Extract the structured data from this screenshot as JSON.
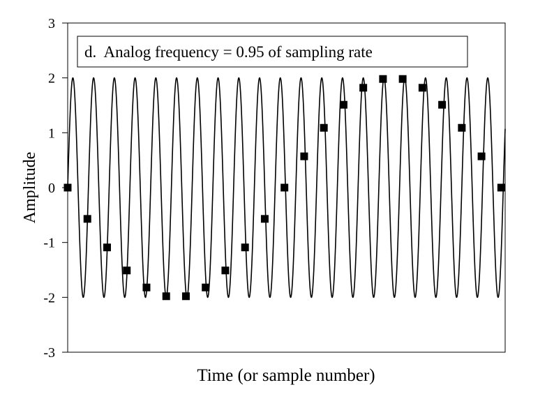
{
  "chart_data": {
    "type": "line",
    "title": "d.  Analog frequency = 0.95 of sampling rate",
    "xlabel": "Time (or sample number)",
    "ylabel": "Amplitude",
    "ylim": [
      -3,
      3
    ],
    "xlim": [
      0,
      22.2
    ],
    "yticks": [
      "3",
      "2",
      "1",
      "0",
      "-1",
      "-2",
      "-3"
    ],
    "grid": false,
    "legend": "none",
    "series": [
      {
        "kind": "continuous",
        "amplitude": 2,
        "cycles_per_sample": 0.95,
        "color": "#000000"
      },
      {
        "kind": "samples",
        "marker": "square",
        "color": "#000000",
        "x": [
          0,
          1,
          2,
          3,
          4,
          5,
          6,
          7,
          8,
          9,
          10,
          11,
          12,
          13,
          14,
          15,
          16,
          17,
          18,
          19,
          20,
          21,
          22
        ],
        "values": [
          0,
          -0.57,
          -1.09,
          -1.51,
          -1.82,
          -1.98,
          -1.98,
          -1.82,
          -1.51,
          -1.09,
          -0.57,
          0,
          0.57,
          1.09,
          1.51,
          1.82,
          1.98,
          1.98,
          1.82,
          1.51,
          1.09,
          0.57,
          0
        ]
      }
    ]
  }
}
